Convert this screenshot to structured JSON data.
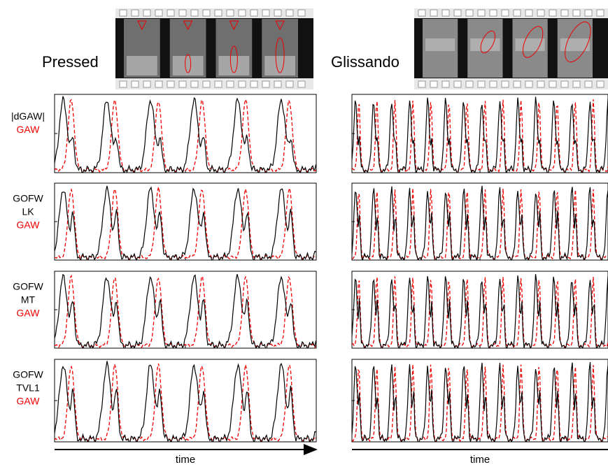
{
  "columns": [
    {
      "title": "Pressed",
      "axis_label": "time"
    },
    {
      "title": "Glissando",
      "axis_label": "time"
    }
  ],
  "rows": [
    {
      "labels": [
        "|dGAW|",
        "GAW"
      ]
    },
    {
      "labels": [
        "GOFW",
        "LK",
        "GAW"
      ]
    },
    {
      "labels": [
        "GOFW",
        "MT",
        "GAW"
      ]
    },
    {
      "labels": [
        "GOFW",
        "TVL1",
        "GAW"
      ]
    }
  ]
}
